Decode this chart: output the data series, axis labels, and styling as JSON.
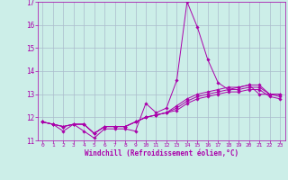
{
  "title": "",
  "xlabel": "Windchill (Refroidissement éolien,°C)",
  "xlim": [
    -0.5,
    23.5
  ],
  "ylim": [
    11,
    17
  ],
  "yticks": [
    11,
    12,
    13,
    14,
    15,
    16,
    17
  ],
  "xticks": [
    0,
    1,
    2,
    3,
    4,
    5,
    6,
    7,
    8,
    9,
    10,
    11,
    12,
    13,
    14,
    15,
    16,
    17,
    18,
    19,
    20,
    21,
    22,
    23
  ],
  "bg_color": "#cceee8",
  "line_color": "#aa00aa",
  "grid_color": "#aabbcc",
  "series": [
    [
      11.8,
      11.7,
      11.4,
      11.7,
      11.4,
      11.1,
      11.5,
      11.5,
      11.5,
      11.4,
      12.6,
      12.2,
      12.4,
      13.6,
      17.0,
      15.9,
      14.5,
      13.5,
      13.2,
      13.3,
      13.4,
      13.0,
      13.0,
      13.0
    ],
    [
      11.8,
      11.7,
      11.6,
      11.7,
      11.7,
      11.3,
      11.6,
      11.6,
      11.6,
      11.8,
      12.0,
      12.1,
      12.2,
      12.5,
      12.8,
      13.0,
      13.1,
      13.2,
      13.3,
      13.3,
      13.4,
      13.4,
      13.0,
      13.0
    ],
    [
      11.8,
      11.7,
      11.6,
      11.7,
      11.7,
      11.3,
      11.6,
      11.6,
      11.6,
      11.8,
      12.0,
      12.1,
      12.2,
      12.4,
      12.7,
      12.9,
      13.0,
      13.1,
      13.2,
      13.2,
      13.3,
      13.3,
      13.0,
      12.9
    ],
    [
      11.8,
      11.7,
      11.6,
      11.7,
      11.7,
      11.3,
      11.6,
      11.6,
      11.6,
      11.8,
      12.0,
      12.1,
      12.2,
      12.3,
      12.6,
      12.8,
      12.9,
      13.0,
      13.1,
      13.1,
      13.2,
      13.2,
      12.9,
      12.8
    ]
  ]
}
